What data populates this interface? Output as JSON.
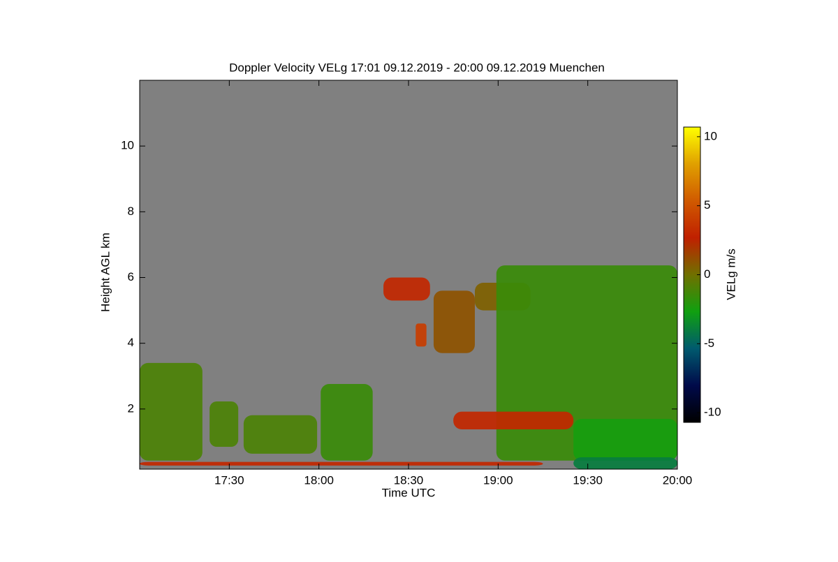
{
  "chart_data": {
    "type": "heatmap",
    "title": "Doppler Velocity VELg   17:01 09.12.2019 - 20:00 09.12.2019 Muenchen",
    "xlabel": "Time UTC",
    "ylabel": "Height AGL km",
    "colorbar_label": "VELg m/s",
    "xlim": [
      17.0,
      20.0
    ],
    "xticks": [
      {
        "value": 17.5,
        "label": "17:30"
      },
      {
        "value": 18.0,
        "label": "18:00"
      },
      {
        "value": 18.5,
        "label": "18:30"
      },
      {
        "value": 19.0,
        "label": "19:00"
      },
      {
        "value": 19.5,
        "label": "19:30"
      },
      {
        "value": 20.0,
        "label": "20:00"
      }
    ],
    "ylim": [
      0.17,
      12.0
    ],
    "yticks": [
      2,
      4,
      6,
      8,
      10
    ],
    "zlim": [
      -10.7,
      10.7
    ],
    "zticks": [
      10,
      5,
      0,
      -5,
      -10
    ],
    "background": "#808080",
    "colormap": [
      "#000000",
      "#000a4a",
      "#005a6e",
      "#10a010",
      "#707000",
      "#c02000",
      "#d05a00",
      "#e0a000",
      "#ffff00"
    ],
    "regions": [
      {
        "x": [
          17.0,
          17.35
        ],
        "y": [
          0.43,
          3.4
        ],
        "value": -1
      },
      {
        "x": [
          17.39,
          17.55
        ],
        "y": [
          0.85,
          2.23
        ],
        "value": -1
      },
      {
        "x": [
          17.58,
          17.99
        ],
        "y": [
          0.64,
          1.81
        ],
        "value": -1
      },
      {
        "x": [
          18.01,
          18.3
        ],
        "y": [
          0.43,
          2.76
        ],
        "value": -1.5
      },
      {
        "x": [
          18.36,
          18.62
        ],
        "y": [
          5.3,
          6.0
        ],
        "value": 3
      },
      {
        "x": [
          18.64,
          18.87
        ],
        "y": [
          3.7,
          5.6
        ],
        "value": 1
      },
      {
        "x": [
          18.54,
          18.6
        ],
        "y": [
          3.9,
          4.6
        ],
        "value": 4
      },
      {
        "x": [
          18.87,
          19.18
        ],
        "y": [
          5.0,
          5.84
        ],
        "value": 0.5
      },
      {
        "x": [
          18.99,
          20.0
        ],
        "y": [
          0.43,
          6.37
        ],
        "value": -1.5
      },
      {
        "x": [
          18.75,
          19.42
        ],
        "y": [
          1.38,
          1.92
        ],
        "value": 3
      },
      {
        "x": [
          19.42,
          20.0
        ],
        "y": [
          0.43,
          1.7
        ],
        "value": -2.5
      },
      {
        "x": [
          17.0,
          19.25
        ],
        "y": [
          0.28,
          0.39
        ],
        "value": 3
      },
      {
        "x": [
          19.42,
          20.0
        ],
        "y": [
          0.17,
          0.53
        ],
        "value": -4
      }
    ]
  }
}
